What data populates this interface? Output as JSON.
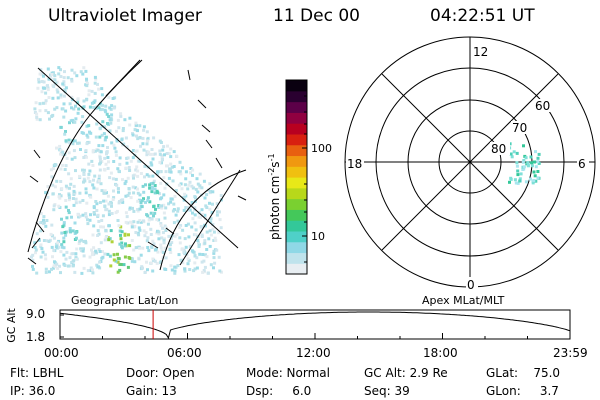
{
  "header": {
    "instrument": "Ultraviolet Imager",
    "date": "11 Dec 00",
    "time": "04:22:51 UT"
  },
  "colorbar": {
    "label": "photon cm",
    "label_sup1": "-2",
    "label_mid": "s",
    "label_sup2": "-1",
    "ticks": [
      "100",
      "10"
    ],
    "colors": [
      "#e8eef2",
      "#bfe3ec",
      "#8fd8e6",
      "#4fd0c8",
      "#33c899",
      "#44c85a",
      "#7ad030",
      "#b8d81a",
      "#e8e818",
      "#f0c010",
      "#f09810",
      "#e86010",
      "#d82010",
      "#b80020",
      "#900040",
      "#5c0048",
      "#2a0030",
      "#0a0010"
    ]
  },
  "polar": {
    "lat_labels": [
      "60",
      "70",
      "80"
    ],
    "mlt_labels": {
      "top": "12",
      "bottom": "0",
      "left": "18",
      "right": "6"
    }
  },
  "timeline": {
    "ylabel": "GC Alt",
    "y_ticks": [
      "9.0",
      "1.8"
    ],
    "left_title": "Geographic Lat/Lon",
    "right_title": "Apex MLat/MLT",
    "x_ticks": [
      "00:00",
      "06:00",
      "12:00",
      "18:00",
      "23:59"
    ],
    "current_hour": 4.38
  },
  "status": {
    "flt": "Flt: LBHL",
    "ip": "IP: 36.0",
    "door": "Door: Open",
    "gain": "Gain: 13",
    "mode": "Mode: Normal",
    "dsp": "Dsp:     6.0",
    "gcalt": "GC Alt: 2.9 Re",
    "seq": "Seq: 39",
    "glat": "GLat:    75.0",
    "glon": "GLon:     3.7"
  }
}
